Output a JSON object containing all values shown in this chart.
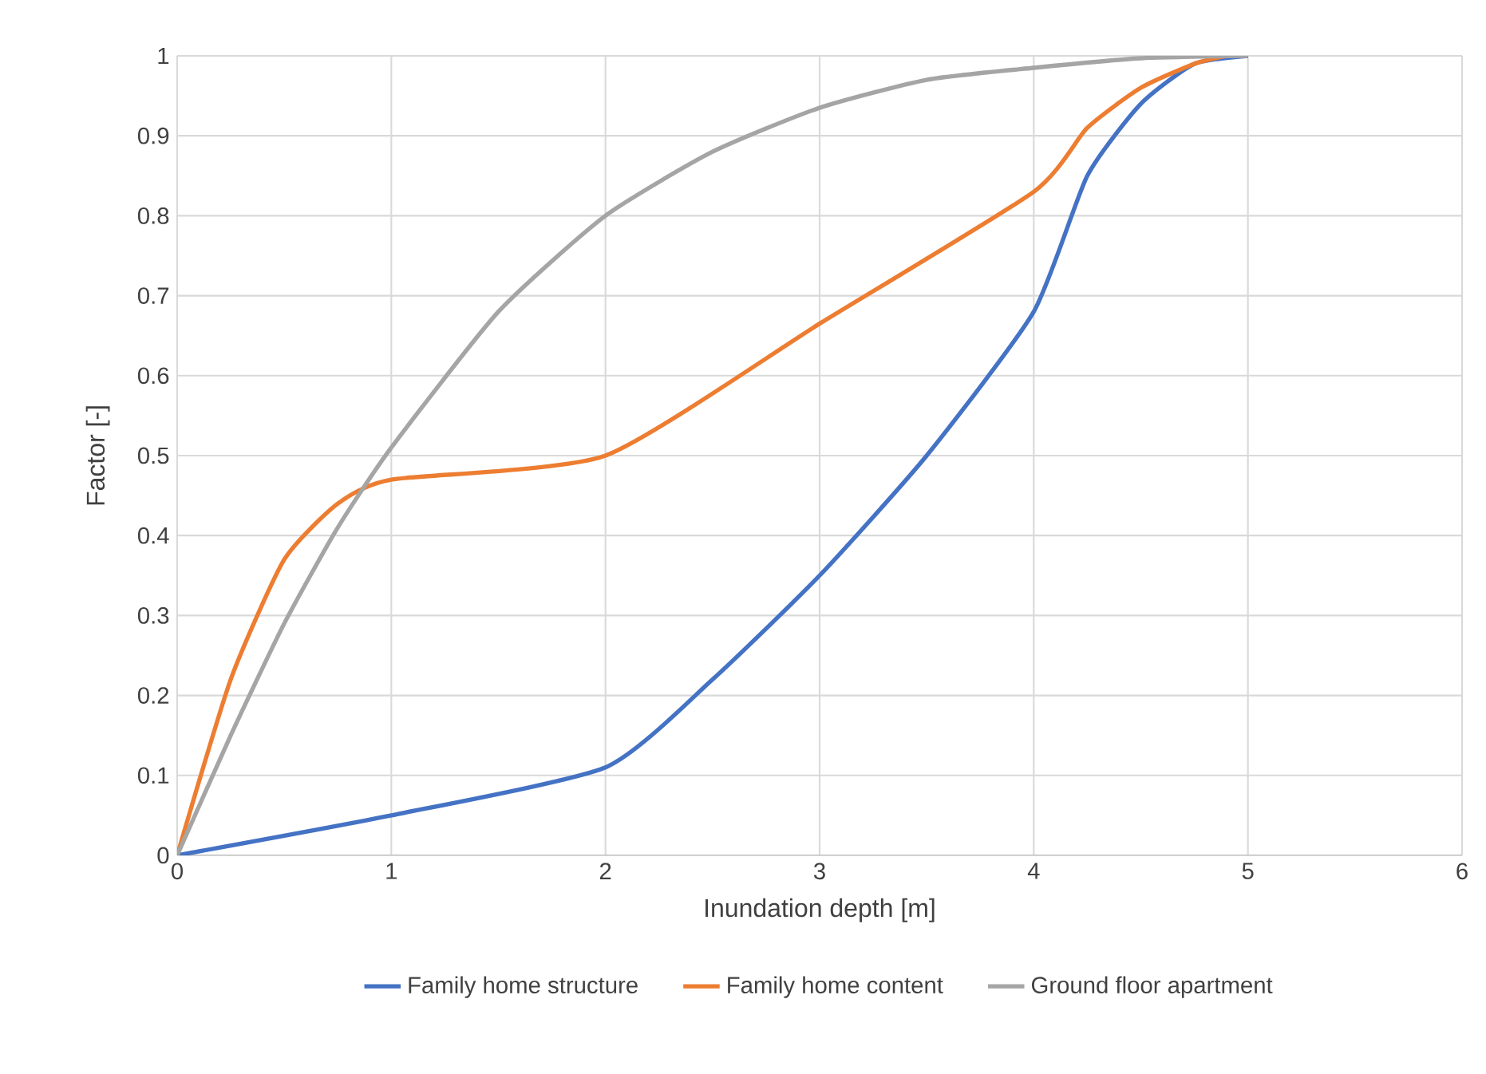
{
  "chart_data": {
    "type": "line",
    "xlabel": "Inundation depth [m]",
    "ylabel": "Factor [-]",
    "xlim": [
      0,
      6
    ],
    "ylim": [
      0,
      1
    ],
    "xticks": [
      0,
      1,
      2,
      3,
      4,
      5,
      6
    ],
    "yticks": [
      0,
      0.1,
      0.2,
      0.3,
      0.4,
      0.5,
      0.6,
      0.7,
      0.8,
      0.9,
      1
    ],
    "grid": true,
    "legend": "bottom",
    "series": [
      {
        "name": "Family home structure",
        "color": "#4472c4",
        "x": [
          0,
          1,
          2,
          2.5,
          3,
          3.5,
          4,
          4.25,
          4.5,
          4.75,
          5
        ],
        "values": [
          0,
          0.05,
          0.11,
          0.22,
          0.35,
          0.5,
          0.68,
          0.85,
          0.94,
          0.99,
          1
        ]
      },
      {
        "name": "Family home content",
        "color": "#ed7d31",
        "x": [
          0,
          0.25,
          0.5,
          0.75,
          1,
          2,
          3,
          4,
          4.25,
          4.5,
          4.75,
          4.9
        ],
        "values": [
          0,
          0.22,
          0.37,
          0.44,
          0.47,
          0.5,
          0.665,
          0.83,
          0.91,
          0.96,
          0.99,
          1
        ]
      },
      {
        "name": "Ground floor apartment",
        "color": "#a5a5a5",
        "x": [
          0,
          0.25,
          0.5,
          0.75,
          1,
          1.5,
          2,
          2.5,
          3,
          3.5,
          4,
          4.5,
          5
        ],
        "values": [
          0,
          0.15,
          0.29,
          0.41,
          0.51,
          0.68,
          0.8,
          0.88,
          0.935,
          0.97,
          0.985,
          0.997,
          1
        ]
      }
    ]
  }
}
